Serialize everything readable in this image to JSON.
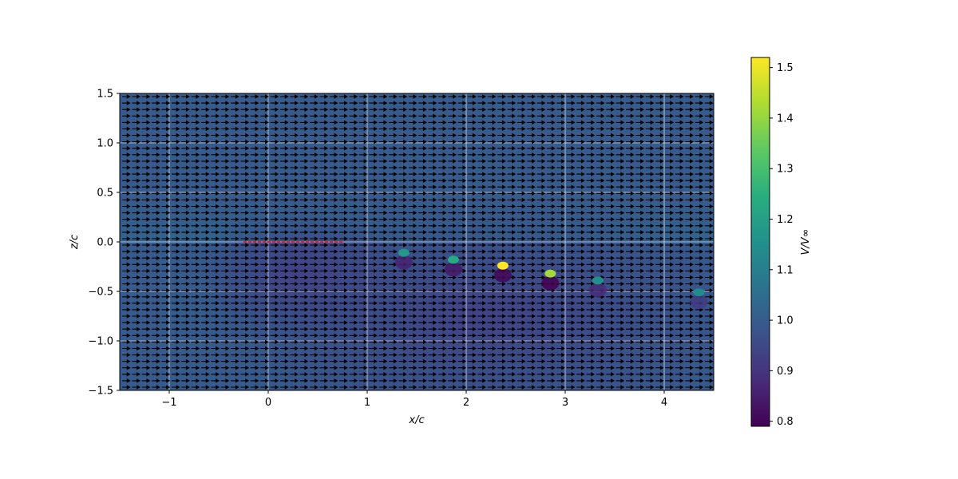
{
  "chart_data": {
    "type": "heatmap",
    "xlabel": "x/c",
    "ylabel": "z/c",
    "xlim": [
      -1.5,
      4.5
    ],
    "ylim": [
      -1.5,
      1.5
    ],
    "x_ticks": [
      -1,
      0,
      1,
      2,
      3,
      4
    ],
    "x_tick_labels": [
      "−1",
      "0",
      "1",
      "2",
      "3",
      "4"
    ],
    "y_ticks": [
      -1.5,
      -1.0,
      -0.5,
      0.0,
      0.5,
      1.0,
      1.5
    ],
    "y_tick_labels": [
      "−1.5",
      "−1.0",
      "−0.5",
      "0.0",
      "0.5",
      "1.0",
      "1.5"
    ],
    "grid": true,
    "colorbar": {
      "label": "V/V∞",
      "colormap": "viridis",
      "range": [
        0.79,
        1.52
      ],
      "ticks": [
        0.8,
        0.9,
        1.0,
        1.1,
        1.2,
        1.3,
        1.4,
        1.5
      ],
      "tick_labels": [
        "0.8",
        "0.9",
        "1.0",
        "1.1",
        "1.2",
        "1.3",
        "1.4",
        "1.5"
      ]
    },
    "field": {
      "freestream_value": 1.0,
      "upper_region_value": 1.03,
      "wake_region_value": 0.93,
      "vector_direction": "positive x"
    },
    "wing": {
      "x_start": -0.25,
      "x_end": 0.75,
      "z": 0.0,
      "color": "#d62728"
    },
    "wake_vortices": [
      {
        "x": 1.37,
        "z": -0.15,
        "v_max": 1.18,
        "v_min": 0.86
      },
      {
        "x": 1.87,
        "z": -0.22,
        "v_max": 1.24,
        "v_min": 0.84
      },
      {
        "x": 2.37,
        "z": -0.28,
        "v_max": 1.52,
        "v_min": 0.8
      },
      {
        "x": 2.85,
        "z": -0.36,
        "v_max": 1.42,
        "v_min": 0.79
      },
      {
        "x": 3.33,
        "z": -0.43,
        "v_max": 1.15,
        "v_min": 0.88
      },
      {
        "x": 4.35,
        "z": -0.55,
        "v_max": 1.14,
        "v_min": 0.92
      }
    ]
  }
}
